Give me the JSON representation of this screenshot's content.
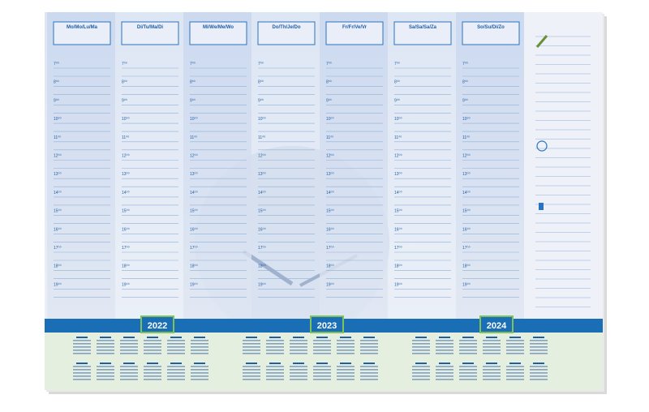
{
  "planner": {
    "days": [
      "Mo/Mo/Lu/Ma",
      "Di/Tu/Ma/Di",
      "Mi/We/Me/Wo",
      "Do/Th/Je/Do",
      "Fr/Fr/Ve/Vr",
      "Sa/Sa/Sa/Za",
      "So/Su/Di/Zo"
    ],
    "hours": [
      "7⁰⁰",
      "8⁰⁰",
      "9⁰⁰",
      "10⁰⁰",
      "11⁰⁰",
      "12⁰⁰",
      "13⁰⁰",
      "14⁰⁰",
      "15⁰⁰",
      "16⁰⁰",
      "17⁰⁰",
      "18⁰⁰",
      "19⁰⁰"
    ],
    "years": [
      "2022",
      "2023",
      "2024"
    ]
  }
}
